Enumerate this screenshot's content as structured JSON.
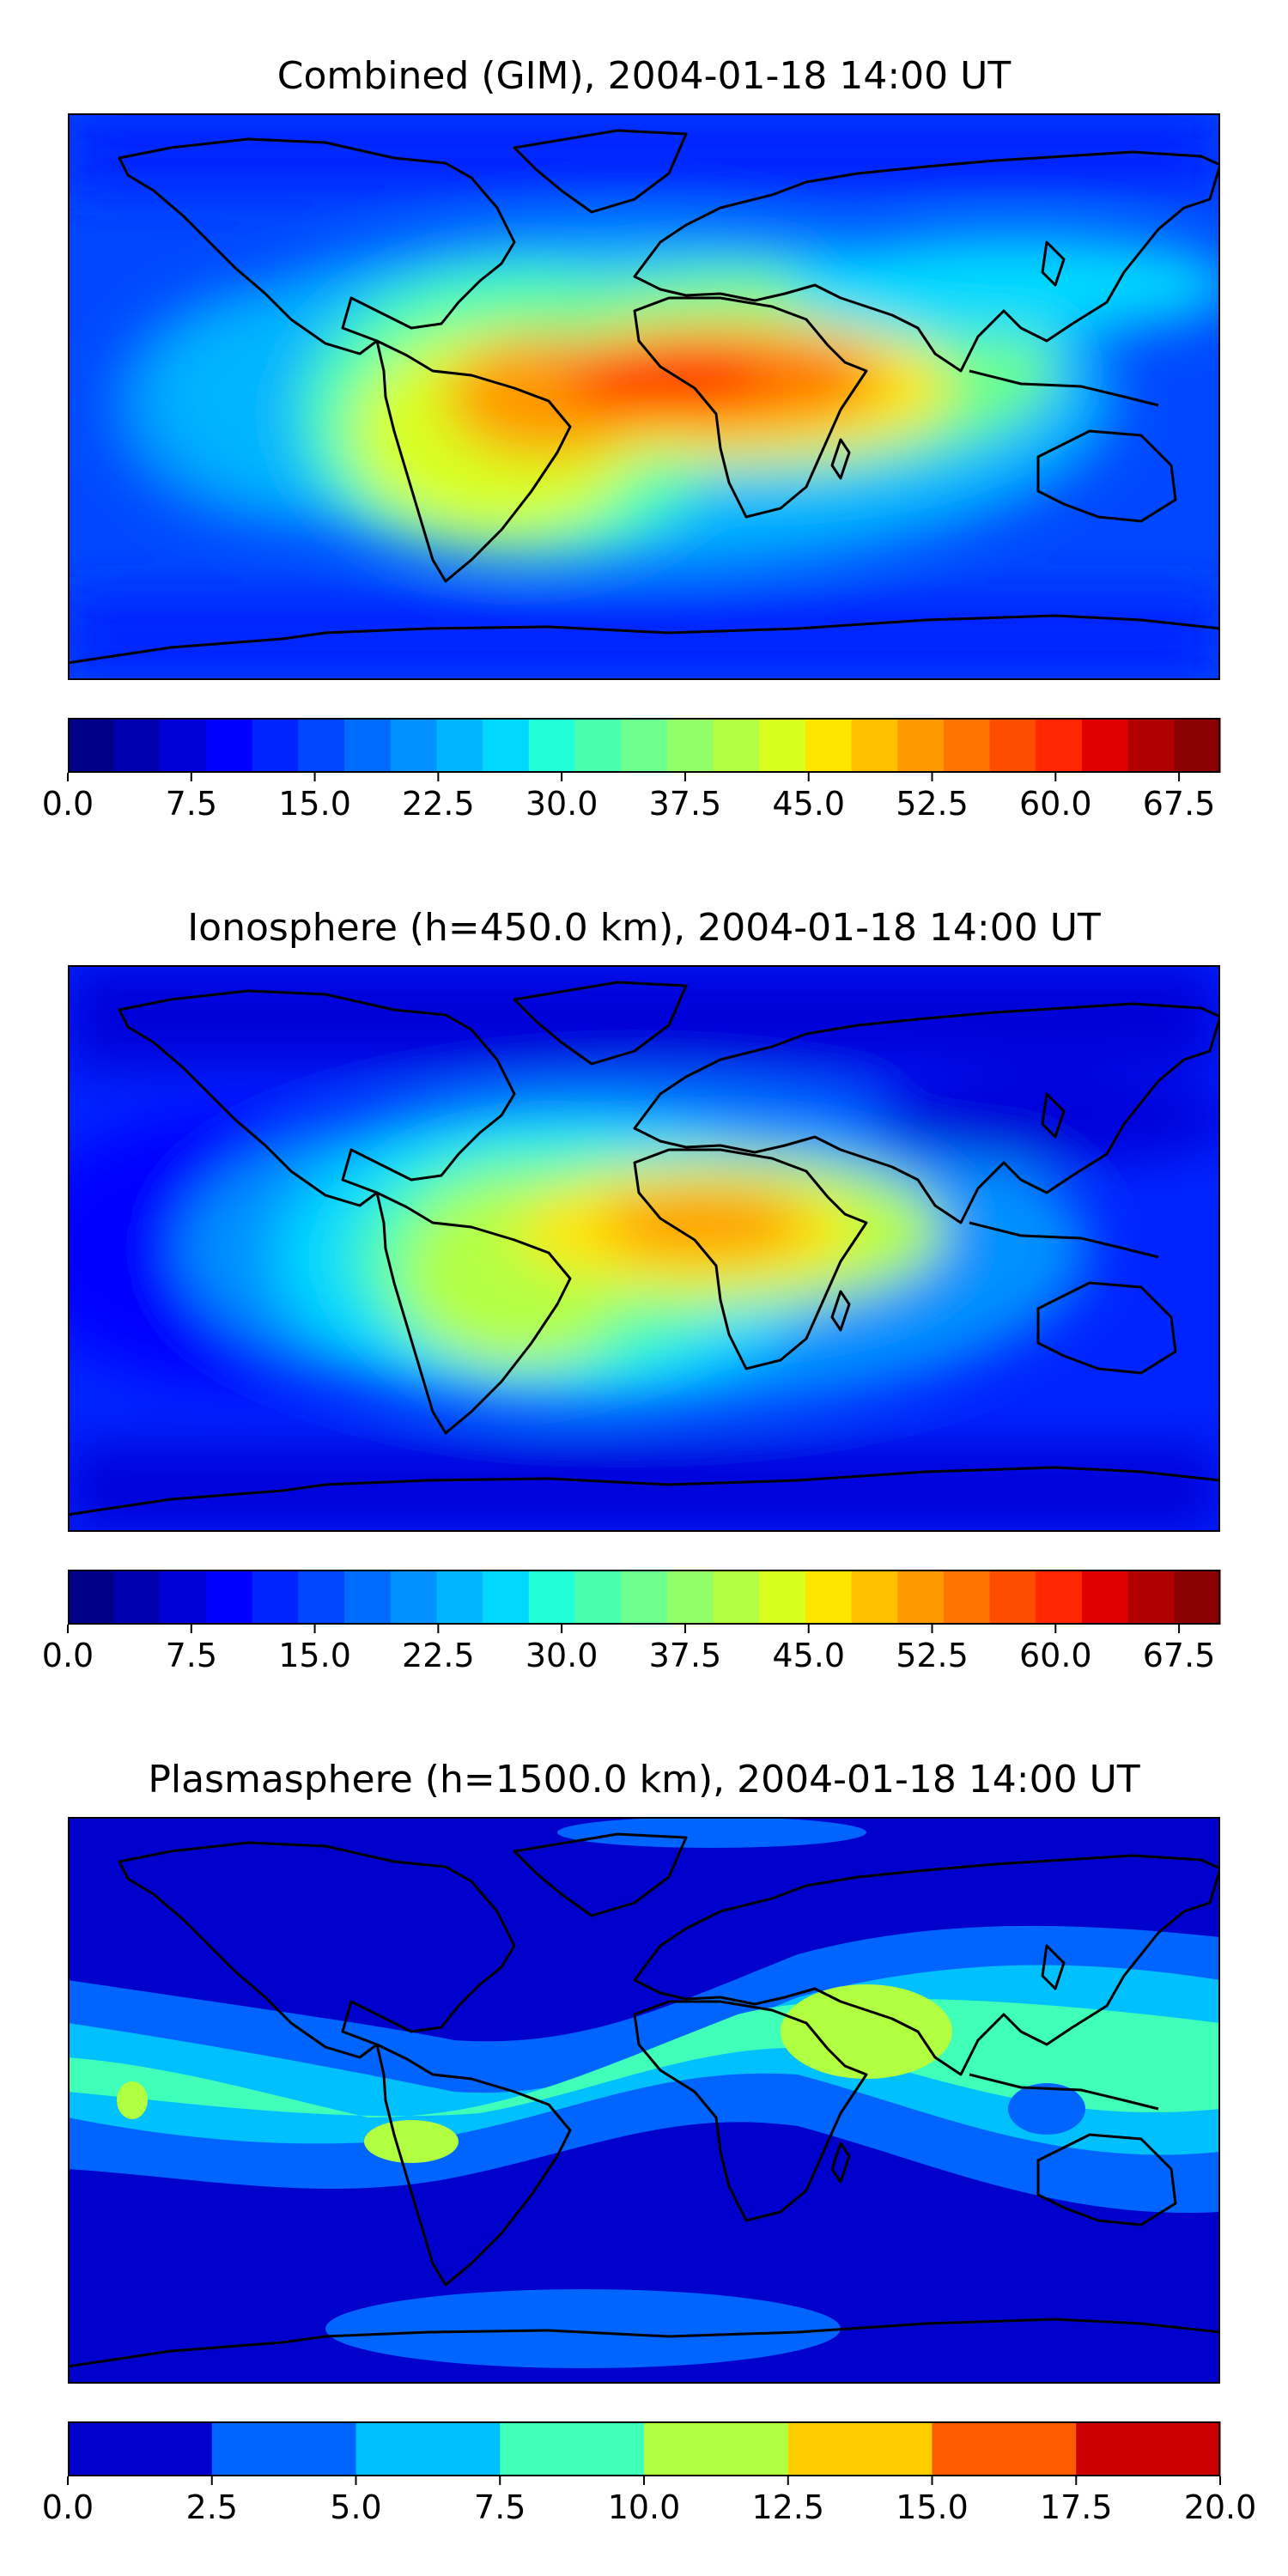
{
  "panels": [
    {
      "title": "Combined (GIM), 2004-01-18 14:00 UT",
      "colorbar": {
        "range": [
          0.0,
          70.0
        ],
        "ticks": [
          "0.0",
          "7.5",
          "15.0",
          "22.5",
          "30.0",
          "37.5",
          "45.0",
          "52.5",
          "60.0",
          "67.5"
        ],
        "tick_values": [
          0.0,
          7.5,
          15.0,
          22.5,
          30.0,
          37.5,
          45.0,
          52.5,
          60.0,
          67.5
        ],
        "colors": [
          "#00008b",
          "#0000b0",
          "#0000d8",
          "#0000ff",
          "#0024ff",
          "#0048ff",
          "#006cff",
          "#0090ff",
          "#00b4ff",
          "#00d8ff",
          "#20ffd8",
          "#48ffb0",
          "#6cff8c",
          "#90ff68",
          "#b4ff44",
          "#d8ff20",
          "#ffe600",
          "#ffc000",
          "#ff9900",
          "#ff7300",
          "#ff4d00",
          "#ff2600",
          "#e00000",
          "#b00000",
          "#8b0000"
        ]
      }
    },
    {
      "title": "Ionosphere  (h=450.0 km), 2004-01-18 14:00 UT",
      "colorbar": {
        "range": [
          0.0,
          70.0
        ],
        "ticks": [
          "0.0",
          "7.5",
          "15.0",
          "22.5",
          "30.0",
          "37.5",
          "45.0",
          "52.5",
          "60.0",
          "67.5"
        ],
        "tick_values": [
          0.0,
          7.5,
          15.0,
          22.5,
          30.0,
          37.5,
          45.0,
          52.5,
          60.0,
          67.5
        ],
        "colors": [
          "#00008b",
          "#0000b0",
          "#0000d8",
          "#0000ff",
          "#0024ff",
          "#0048ff",
          "#006cff",
          "#0090ff",
          "#00b4ff",
          "#00d8ff",
          "#20ffd8",
          "#48ffb0",
          "#6cff8c",
          "#90ff68",
          "#b4ff44",
          "#d8ff20",
          "#ffe600",
          "#ffc000",
          "#ff9900",
          "#ff7300",
          "#ff4d00",
          "#ff2600",
          "#e00000",
          "#b00000",
          "#8b0000"
        ]
      }
    },
    {
      "title": "Plasmasphere (h=1500.0 km), 2004-01-18 14:00 UT",
      "colorbar": {
        "range": [
          0.0,
          20.0
        ],
        "ticks": [
          "0.0",
          "2.5",
          "5.0",
          "7.5",
          "10.0",
          "12.5",
          "15.0",
          "17.5",
          "20.0"
        ],
        "tick_values": [
          0.0,
          2.5,
          5.0,
          7.5,
          10.0,
          12.5,
          15.0,
          17.5,
          20.0
        ],
        "colors": [
          "#0000cd",
          "#0064ff",
          "#00c0ff",
          "#40ffb8",
          "#b0ff40",
          "#ffcc00",
          "#ff5a00",
          "#cc0000"
        ]
      }
    }
  ]
}
